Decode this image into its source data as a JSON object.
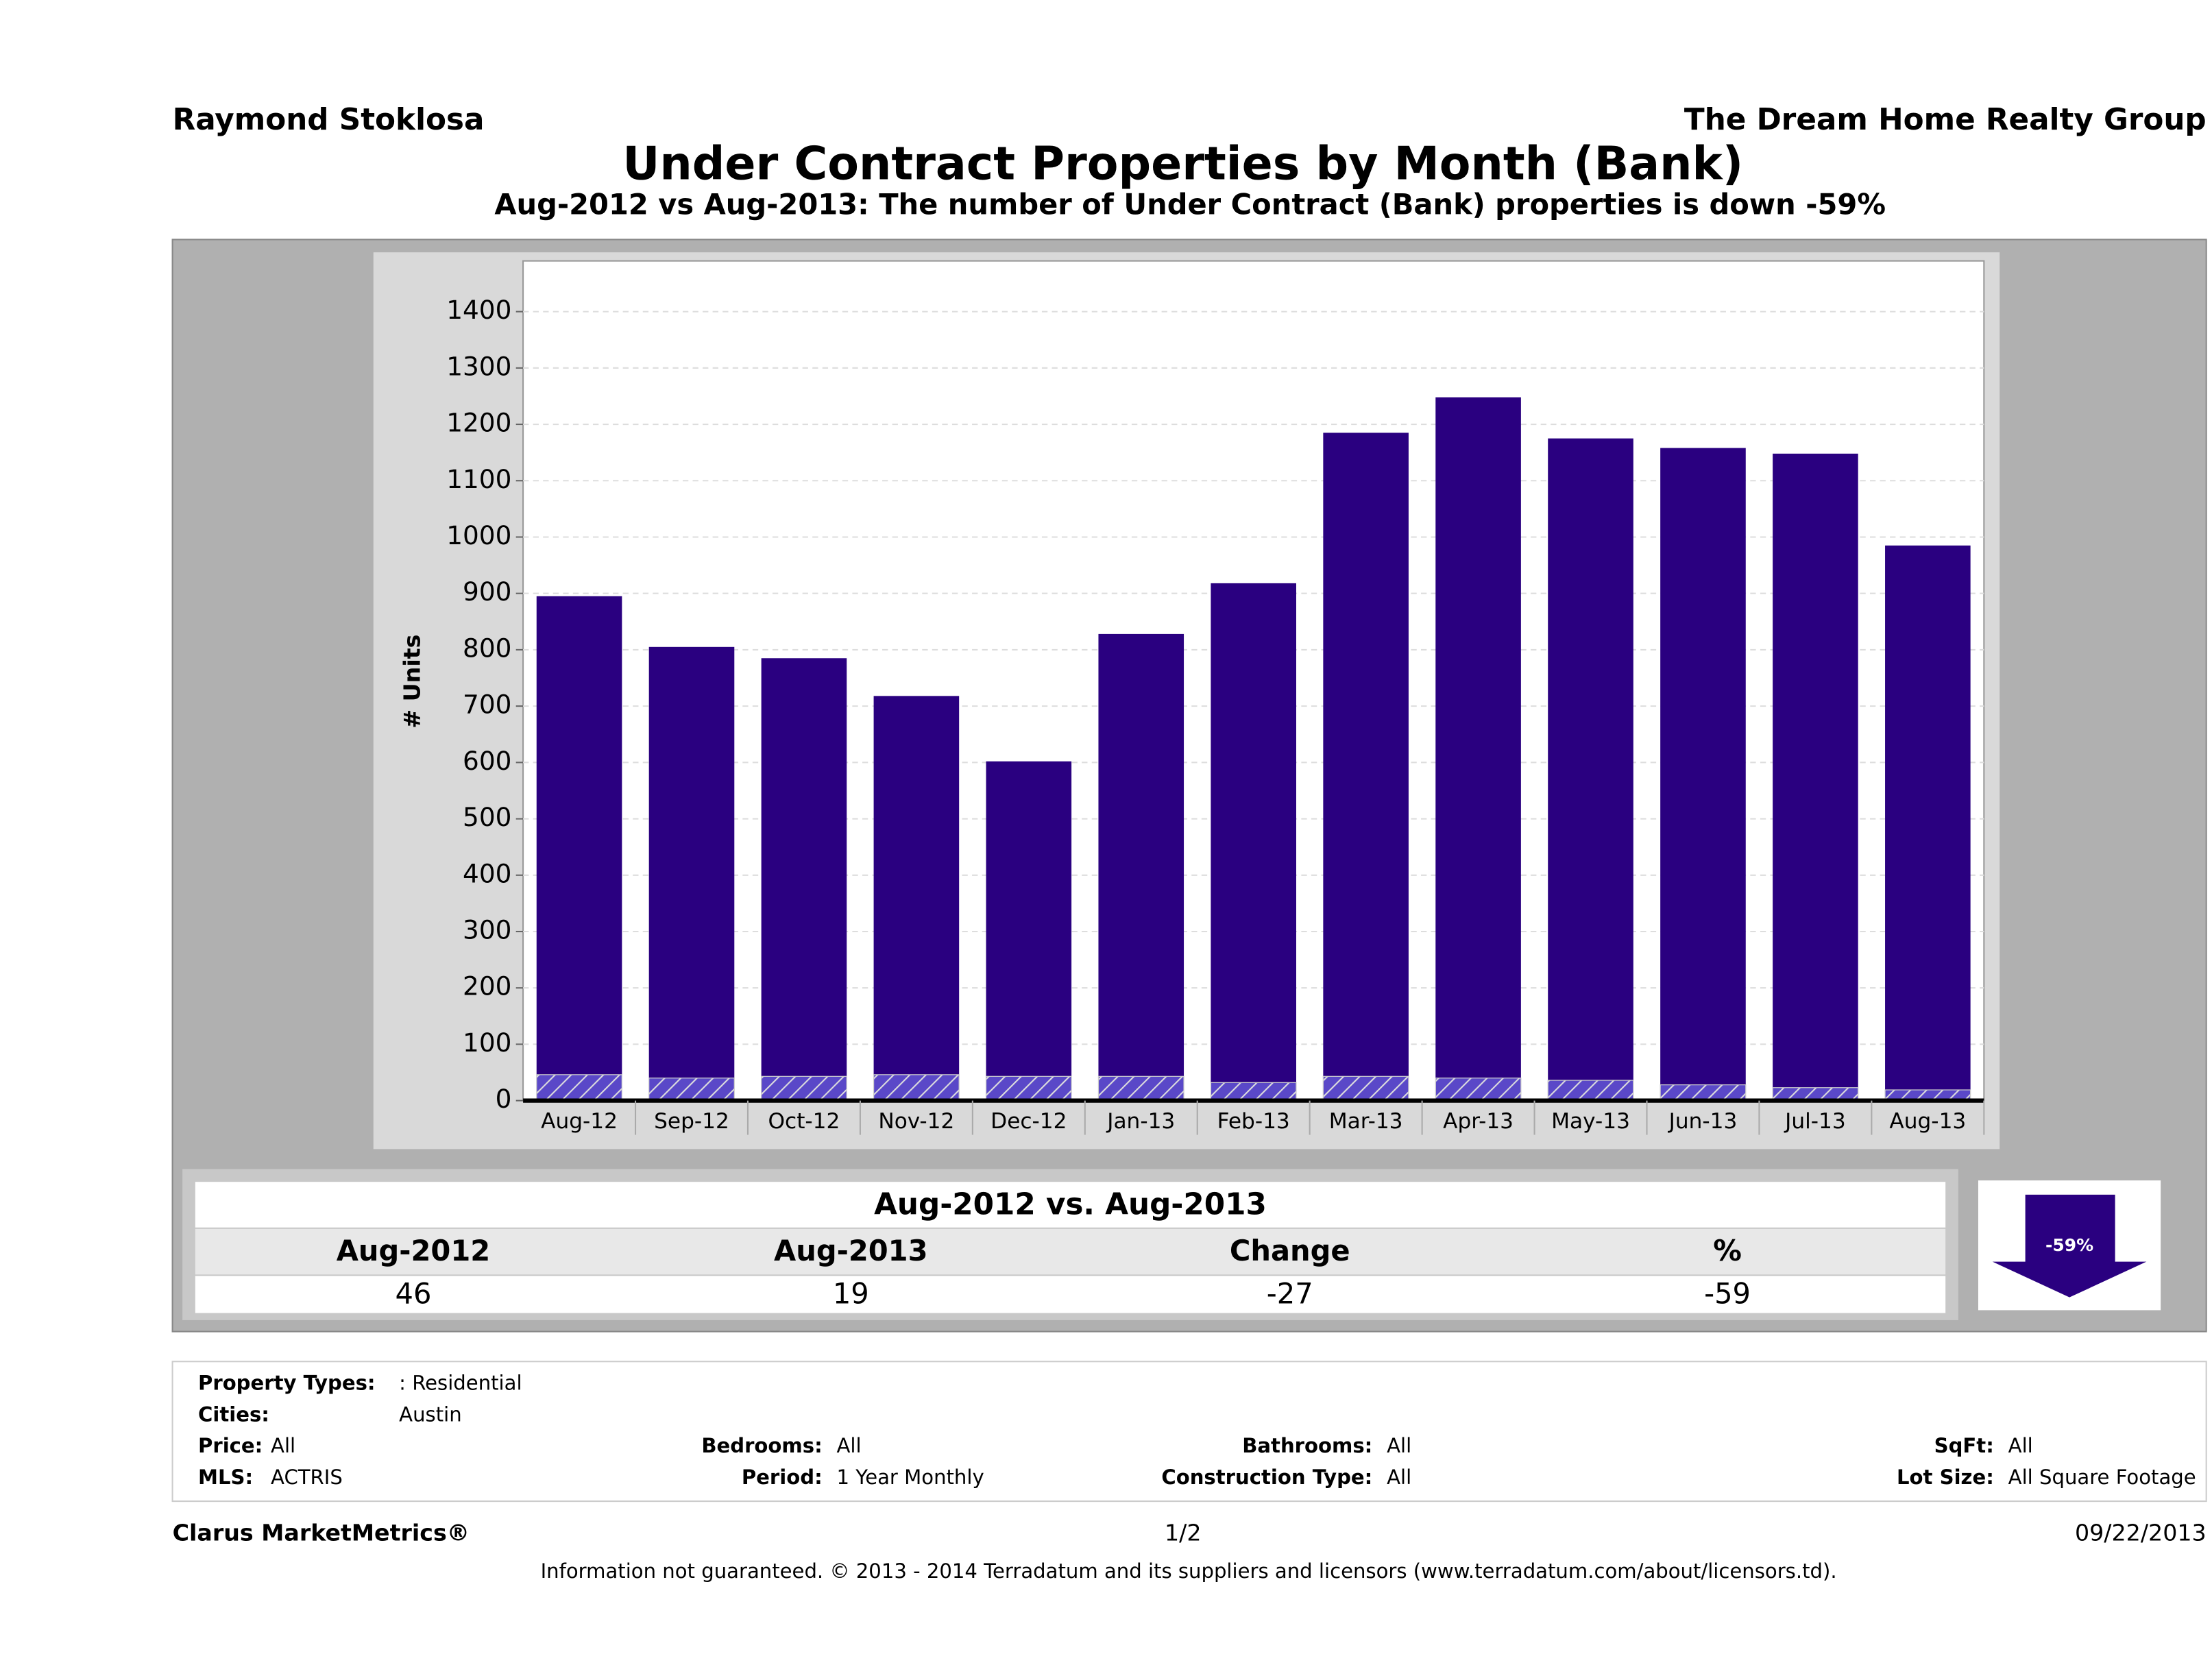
{
  "header": {
    "agent": "Raymond Stoklosa",
    "company": "The Dream Home Realty Group"
  },
  "chart_data": {
    "type": "bar",
    "title": "Under Contract Properties by Month (Bank)",
    "subtitle": "Aug-2012 vs Aug-2013: The number of Under Contract (Bank)  properties is down -59%",
    "y_label": "# Units",
    "categories": [
      "Aug-12",
      "Sep-12",
      "Oct-12",
      "Nov-12",
      "Dec-12",
      "Jan-13",
      "Feb-13",
      "Mar-13",
      "Apr-13",
      "May-13",
      "Jun-13",
      "Jul-13",
      "Aug-13"
    ],
    "series": [
      {
        "color": "#2a0080",
        "values": [
          895,
          805,
          785,
          718,
          602,
          828,
          918,
          1185,
          1248,
          1175,
          1158,
          1148,
          985
        ]
      },
      {
        "color": "#5a48c8",
        "values": [
          46,
          40,
          43,
          46,
          43,
          43,
          32,
          43,
          40,
          36,
          28,
          23,
          19
        ]
      }
    ],
    "ylim": [
      0,
      1490
    ],
    "yticks": [
      0,
      100,
      200,
      300,
      400,
      500,
      600,
      700,
      800,
      900,
      1000,
      1100,
      1200,
      1300,
      1400
    ],
    "grid": true
  },
  "comparison": {
    "title": "Aug-2012 vs. Aug-2013",
    "columns": [
      "Aug-2012",
      "Aug-2013",
      "Change",
      "%"
    ],
    "values": [
      46,
      19,
      -27,
      -59
    ],
    "badge": "-59%"
  },
  "filters": [
    {
      "label": "Property Types:",
      "value": ": Residential"
    },
    {
      "label": "Cities:",
      "value": "Austin"
    },
    {
      "label": "Price:",
      "value": "All"
    },
    {
      "label": "MLS:",
      "value": "ACTRIS"
    },
    {
      "label": "Bedrooms:",
      "value": "All"
    },
    {
      "label": "Period:",
      "value": "1 Year Monthly"
    },
    {
      "label": "Bathrooms:",
      "value": "All"
    },
    {
      "label": "Construction Type:",
      "value": "All"
    },
    {
      "label": "SqFt:",
      "value": "All"
    },
    {
      "label": "Lot Size:",
      "value": "All Square Footage"
    }
  ],
  "footer": {
    "brand": "Clarus MarketMetrics®",
    "page": "1/2",
    "date": "09/22/2013",
    "disclaimer": "Information not guaranteed. © 2013 - 2014 Terradatum and its suppliers and licensors (www.terradatum.com/about/licensors.td)."
  }
}
